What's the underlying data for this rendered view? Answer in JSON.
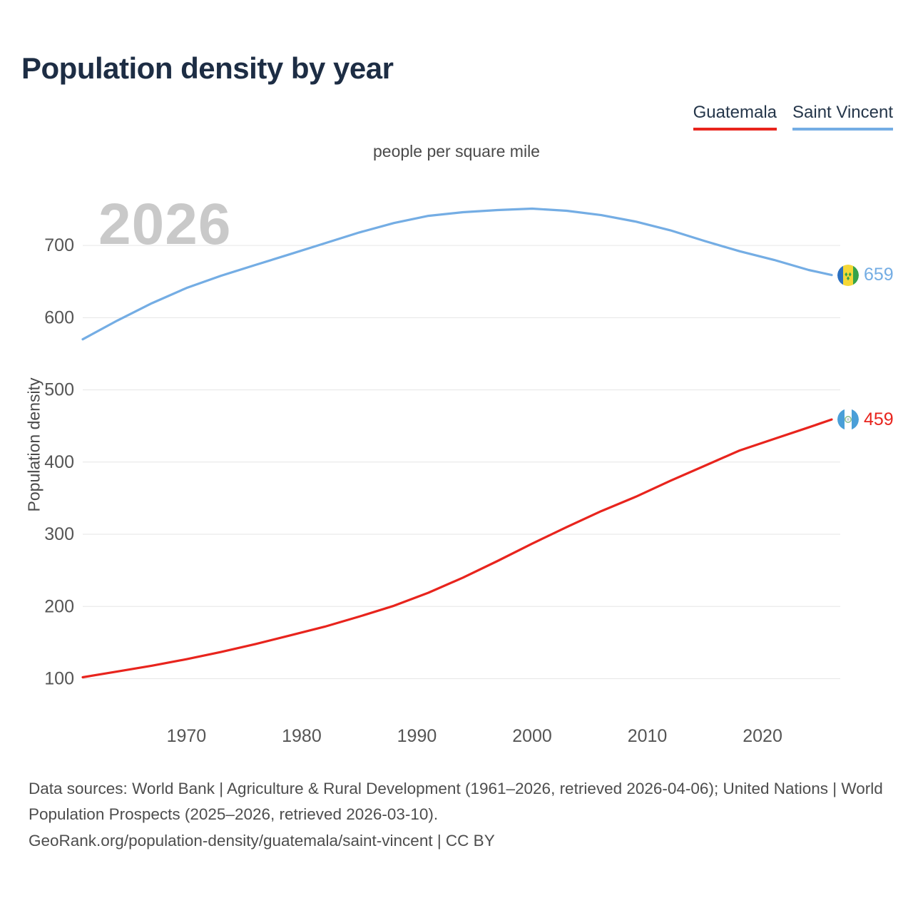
{
  "page": {
    "title": "Population density by year",
    "subtitle": "people per square mile",
    "watermark": "2026",
    "ylabel": "Population density"
  },
  "legend": {
    "items": [
      {
        "label": "Guatemala",
        "color": "#e8241d"
      },
      {
        "label": "Saint Vincent",
        "color": "#74ade4"
      }
    ]
  },
  "markers": [
    {
      "series": "Guatemala",
      "value_label": "459",
      "color": "#e8241d",
      "flag": "guatemala-flag"
    },
    {
      "series": "Saint Vincent",
      "value_label": "659",
      "color": "#74ade4",
      "flag": "saint-vincent-flag"
    }
  ],
  "footer": {
    "sources": "Data sources: World Bank | Agriculture & Rural Development (1961–2026, retrieved 2026-04-06); United Nations | World Population Prospects (2025–2026, retrieved 2026-03-10).",
    "attribution": "GeoRank.org/population-density/guatemala/saint-vincent | CC BY"
  },
  "chart_data": {
    "type": "line",
    "title": "Population density by year",
    "subtitle": "people per square mile",
    "ylabel": "Population density",
    "unit": "people per square mile",
    "watermark": "2026",
    "grid": true,
    "legend_position": "top-right",
    "xlim": [
      1961,
      2026
    ],
    "ylim": [
      60,
      790
    ],
    "xticks": [
      1970,
      1980,
      1990,
      2000,
      2010,
      2020
    ],
    "yticks": [
      100,
      200,
      300,
      400,
      500,
      600,
      700
    ],
    "x": [
      1961,
      1964,
      1967,
      1970,
      1973,
      1976,
      1979,
      1982,
      1985,
      1988,
      1991,
      1994,
      1997,
      2000,
      2003,
      2006,
      2009,
      2012,
      2015,
      2018,
      2021,
      2024,
      2026
    ],
    "series": [
      {
        "name": "Guatemala",
        "color": "#e8241d",
        "end_value": 459,
        "values": [
          102,
          110,
          118,
          127,
          137,
          148,
          160,
          172,
          186,
          201,
          219,
          240,
          263,
          287,
          310,
          332,
          352,
          374,
          395,
          416,
          432,
          448,
          459
        ]
      },
      {
        "name": "Saint Vincent",
        "color": "#74ade4",
        "end_value": 659,
        "values": [
          570,
          596,
          620,
          641,
          658,
          673,
          688,
          703,
          718,
          731,
          741,
          746,
          749,
          751,
          748,
          742,
          733,
          721,
          706,
          692,
          680,
          666,
          659
        ]
      }
    ]
  }
}
